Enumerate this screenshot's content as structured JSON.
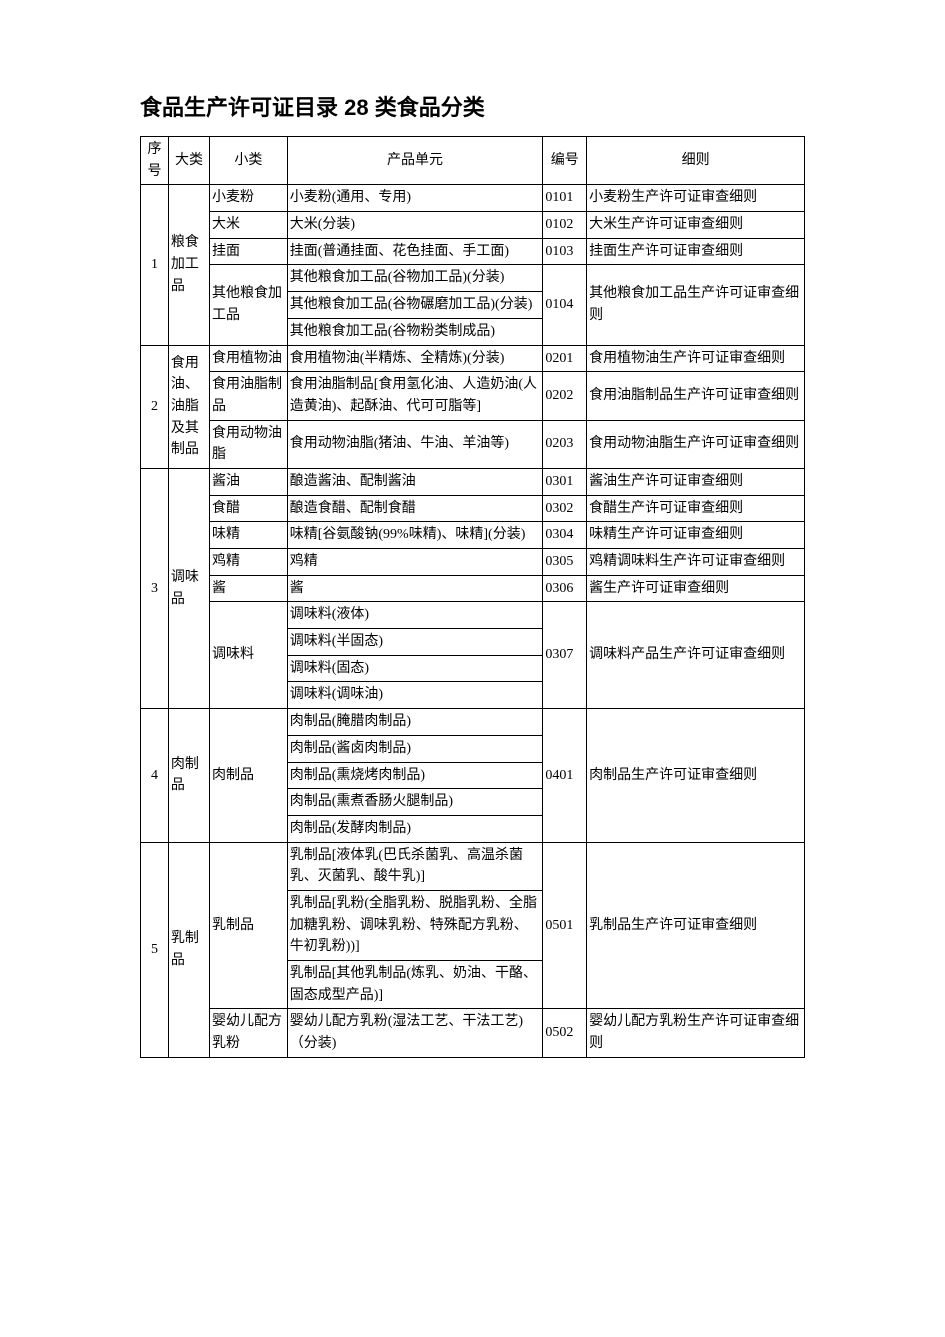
{
  "title": "食品生产许可证目录 28 类食品分类",
  "columns": [
    "序号",
    "大类",
    "小类",
    "产品单元",
    "编号",
    "细则"
  ],
  "colors": {
    "background": "#ffffff",
    "border": "#000000",
    "text": "#000000"
  },
  "categories": [
    {
      "seq": "1",
      "name": "粮食加工品",
      "subs": [
        {
          "name": "小麦粉",
          "code": "0101",
          "rule": "小麦粉生产许可证审查细则",
          "units": [
            "小麦粉(通用、专用)"
          ]
        },
        {
          "name": "大米",
          "code": "0102",
          "rule": "大米生产许可证审查细则",
          "units": [
            "大米(分装)"
          ]
        },
        {
          "name": "挂面",
          "code": "0103",
          "rule": "挂面生产许可证审查细则",
          "units": [
            "挂面(普通挂面、花色挂面、手工面)"
          ]
        },
        {
          "name": "其他粮食加工品",
          "code": "0104",
          "rule": "其他粮食加工品生产许可证审查细则",
          "units": [
            "其他粮食加工品(谷物加工品)(分装)",
            "其他粮食加工品(谷物碾磨加工品)(分装)",
            "其他粮食加工品(谷物粉类制成品)"
          ]
        }
      ]
    },
    {
      "seq": "2",
      "name": "食用油、油脂及其制品",
      "subs": [
        {
          "name": "食用植物油",
          "code": "0201",
          "rule": "食用植物油生产许可证审查细则",
          "units": [
            "食用植物油(半精炼、全精炼)(分装)"
          ]
        },
        {
          "name": "食用油脂制品",
          "code": "0202",
          "rule": "食用油脂制品生产许可证审查细则",
          "units": [
            "食用油脂制品[食用氢化油、人造奶油(人造黄油)、起酥油、代可可脂等]"
          ]
        },
        {
          "name": "食用动物油脂",
          "code": "0203",
          "rule": "食用动物油脂生产许可证审查细则",
          "units": [
            "食用动物油脂(猪油、牛油、羊油等)"
          ]
        }
      ]
    },
    {
      "seq": "3",
      "name": "调味品",
      "subs": [
        {
          "name": "酱油",
          "code": "0301",
          "rule": "酱油生产许可证审查细则",
          "units": [
            "酿造酱油、配制酱油"
          ]
        },
        {
          "name": "食醋",
          "code": "0302",
          "rule": "食醋生产许可证审查细则",
          "units": [
            "酿造食醋、配制食醋"
          ]
        },
        {
          "name": "味精",
          "code": "0304",
          "rule": "味精生产许可证审查细则",
          "units": [
            "味精[谷氨酸钠(99%味精)、味精](分装)"
          ]
        },
        {
          "name": "鸡精",
          "code": "0305",
          "rule": "鸡精调味料生产许可证审查细则",
          "units": [
            "鸡精"
          ]
        },
        {
          "name": "酱",
          "code": "0306",
          "rule": "酱生产许可证审查细则",
          "units": [
            "酱"
          ]
        },
        {
          "name": "调味料",
          "code": "0307",
          "rule": "调味料产品生产许可证审查细则",
          "units": [
            "调味料(液体)",
            "调味料(半固态)",
            "调味料(固态)",
            "调味料(调味油)"
          ]
        }
      ]
    },
    {
      "seq": "4",
      "name": "肉制品",
      "subs": [
        {
          "name": "肉制品",
          "code": "0401",
          "rule": "肉制品生产许可证审查细则",
          "units": [
            "肉制品(腌腊肉制品)",
            "肉制品(酱卤肉制品)",
            "肉制品(熏烧烤肉制品)",
            "肉制品(熏煮香肠火腿制品)",
            "肉制品(发酵肉制品)"
          ]
        }
      ]
    },
    {
      "seq": "5",
      "name": "乳制品",
      "subs": [
        {
          "name": "乳制品",
          "code": "0501",
          "rule": "乳制品生产许可证审查细则",
          "units": [
            "乳制品[液体乳(巴氏杀菌乳、高温杀菌乳、灭菌乳、酸牛乳)]",
            "乳制品[乳粉(全脂乳粉、脱脂乳粉、全脂加糖乳粉、调味乳粉、特殊配方乳粉、牛初乳粉))]",
            "乳制品[其他乳制品(炼乳、奶油、干酪、固态成型产品)]"
          ]
        },
        {
          "name": "婴幼儿配方乳粉",
          "code": "0502",
          "rule": "婴幼儿配方乳粉生产许可证审查细则",
          "units": [
            "婴幼儿配方乳粉(湿法工艺、干法工艺)（分装)"
          ]
        }
      ]
    }
  ]
}
